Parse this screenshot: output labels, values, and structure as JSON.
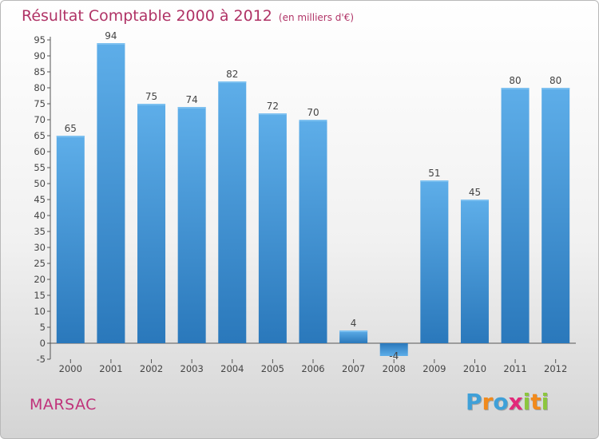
{
  "chart_data": {
    "type": "bar",
    "title": "Résultat Comptable 2000 à 2012",
    "subtitle": "(en milliers d'€)",
    "categories": [
      "2000",
      "2001",
      "2002",
      "2003",
      "2004",
      "2005",
      "2006",
      "2007",
      "2008",
      "2009",
      "2010",
      "2011",
      "2012"
    ],
    "values": [
      65,
      94,
      75,
      74,
      82,
      72,
      70,
      4,
      -4,
      51,
      45,
      80,
      80
    ],
    "data_labels": [
      "65",
      "94",
      "75",
      "74",
      "82",
      "72",
      "70",
      "4",
      "-4",
      "51",
      "45",
      "80",
      "80"
    ],
    "y_ticks": [
      "-5",
      "0",
      "5",
      "10",
      "15",
      "20",
      "25",
      "30",
      "35",
      "40",
      "45",
      "50",
      "55",
      "60",
      "65",
      "70",
      "75",
      "80",
      "85",
      "90",
      "95"
    ],
    "ylim": [
      -5,
      95
    ],
    "grid": false,
    "bar_color": "#4f9fdf",
    "title_color": "#b03366"
  },
  "footer": {
    "place": "MARSAC",
    "brand_letters": [
      "P",
      "r",
      "o",
      "x",
      "i",
      "t",
      "i"
    ],
    "brand_colors": [
      "#3fa0d8",
      "#f18a1c",
      "#3fa0d8",
      "#e2297a",
      "#8cc63e",
      "#f18a1c",
      "#8cc63e"
    ]
  }
}
